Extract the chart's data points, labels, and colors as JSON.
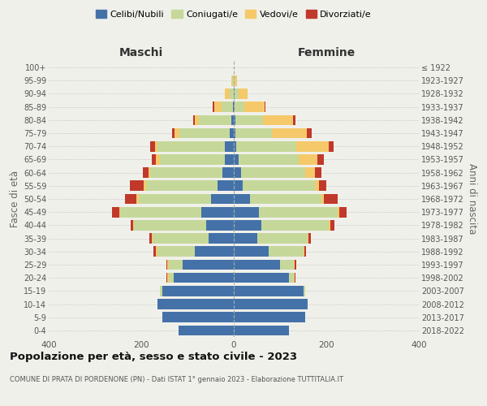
{
  "age_groups": [
    "0-4",
    "5-9",
    "10-14",
    "15-19",
    "20-24",
    "25-29",
    "30-34",
    "35-39",
    "40-44",
    "45-49",
    "50-54",
    "55-59",
    "60-64",
    "65-69",
    "70-74",
    "75-79",
    "80-84",
    "85-89",
    "90-94",
    "95-99",
    "100+"
  ],
  "birth_years": [
    "2018-2022",
    "2013-2017",
    "2008-2012",
    "2003-2007",
    "1998-2002",
    "1993-1997",
    "1988-1992",
    "1983-1987",
    "1978-1982",
    "1973-1977",
    "1968-1972",
    "1963-1967",
    "1958-1962",
    "1953-1957",
    "1948-1952",
    "1943-1947",
    "1938-1942",
    "1933-1937",
    "1928-1932",
    "1923-1927",
    "≤ 1922"
  ],
  "maschi": {
    "celibi": [
      120,
      155,
      165,
      155,
      130,
      110,
      85,
      55,
      60,
      70,
      50,
      35,
      25,
      20,
      20,
      8,
      5,
      2,
      0,
      0,
      0
    ],
    "coniugati": [
      0,
      0,
      0,
      5,
      10,
      30,
      80,
      120,
      155,
      175,
      155,
      155,
      155,
      140,
      145,
      110,
      70,
      25,
      8,
      3,
      0
    ],
    "vedovi": [
      0,
      0,
      0,
      0,
      3,
      3,
      3,
      2,
      2,
      3,
      5,
      5,
      5,
      8,
      5,
      10,
      10,
      15,
      12,
      3,
      0
    ],
    "divorziati": [
      0,
      0,
      0,
      0,
      3,
      3,
      5,
      5,
      5,
      15,
      25,
      30,
      12,
      10,
      10,
      5,
      3,
      3,
      0,
      0,
      0
    ]
  },
  "femmine": {
    "nubili": [
      120,
      155,
      160,
      150,
      120,
      100,
      75,
      50,
      60,
      55,
      35,
      20,
      15,
      10,
      5,
      3,
      3,
      2,
      2,
      0,
      0
    ],
    "coniugate": [
      0,
      0,
      0,
      5,
      10,
      30,
      75,
      110,
      145,
      170,
      155,
      155,
      140,
      130,
      130,
      80,
      60,
      20,
      8,
      2,
      0
    ],
    "vedove": [
      0,
      0,
      0,
      0,
      2,
      2,
      2,
      2,
      3,
      3,
      5,
      10,
      20,
      40,
      70,
      75,
      65,
      45,
      20,
      5,
      0
    ],
    "divorziate": [
      0,
      0,
      0,
      0,
      2,
      3,
      5,
      5,
      10,
      15,
      30,
      15,
      15,
      15,
      10,
      10,
      5,
      2,
      0,
      0,
      0
    ]
  },
  "colors": {
    "celibi": "#4472A8",
    "coniugati": "#C5D89A",
    "vedovi": "#F5C96A",
    "divorziati": "#C0392B"
  },
  "title": "Popolazione per età, sesso e stato civile - 2023",
  "subtitle": "COMUNE DI PRATA DI PORDENONE (PN) - Dati ISTAT 1° gennaio 2023 - Elaborazione TUTTITALIA.IT",
  "xlabel_left": "Maschi",
  "xlabel_right": "Femmine",
  "ylabel_left": "Fasce di età",
  "ylabel_right": "Anni di nascita",
  "xlim": 400,
  "background_color": "#f0f0eb",
  "legend_labels": [
    "Celibi/Nubili",
    "Coniugati/e",
    "Vedovi/e",
    "Divorziati/e"
  ]
}
